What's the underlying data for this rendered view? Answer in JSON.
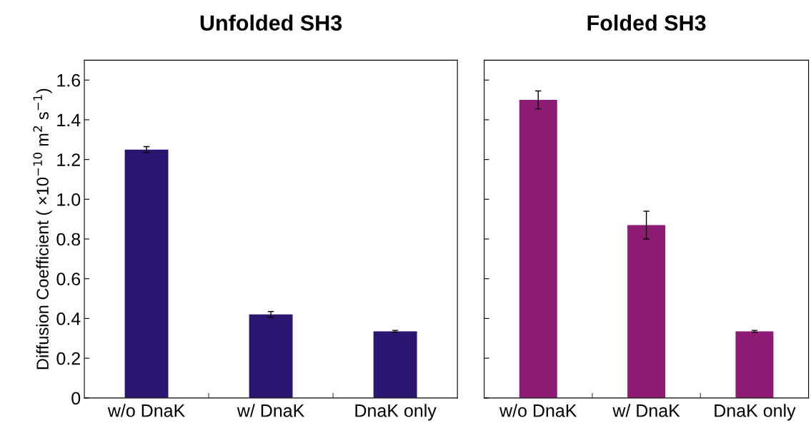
{
  "chart_data": [
    {
      "type": "bar",
      "title": "Unfolded SH3",
      "ylabel": "Diffusion Coefficient ( ×10$^{−10}$ m$^{2}$ s$^{−1}$)",
      "categories": [
        "w/o DnaK",
        "w/ DnaK",
        "DnaK only"
      ],
      "values": [
        1.25,
        0.42,
        0.335
      ],
      "errors": [
        0.015,
        0.015,
        0.005
      ],
      "color": "#2a1670",
      "ylim": [
        0,
        1.7
      ],
      "yticks": [
        0,
        0.2,
        0.4,
        0.6,
        0.8,
        {
          "value": 1,
          "label": "1.0"
        },
        1.2,
        1.4,
        1.6
      ],
      "grid": false
    },
    {
      "type": "bar",
      "title": "Folded SH3",
      "categories": [
        "w/o DnaK",
        "w/ DnaK",
        "DnaK only"
      ],
      "values": [
        1.5,
        0.87,
        0.335
      ],
      "errors": [
        0.045,
        0.07,
        0.005
      ],
      "color": "#8e1b73",
      "ylim": [
        0,
        1.7
      ],
      "yticks": [
        0,
        0.2,
        0.4,
        0.6,
        0.8,
        1,
        1.2,
        1.4,
        1.6
      ],
      "tick_labels": "x",
      "grid": false
    }
  ]
}
